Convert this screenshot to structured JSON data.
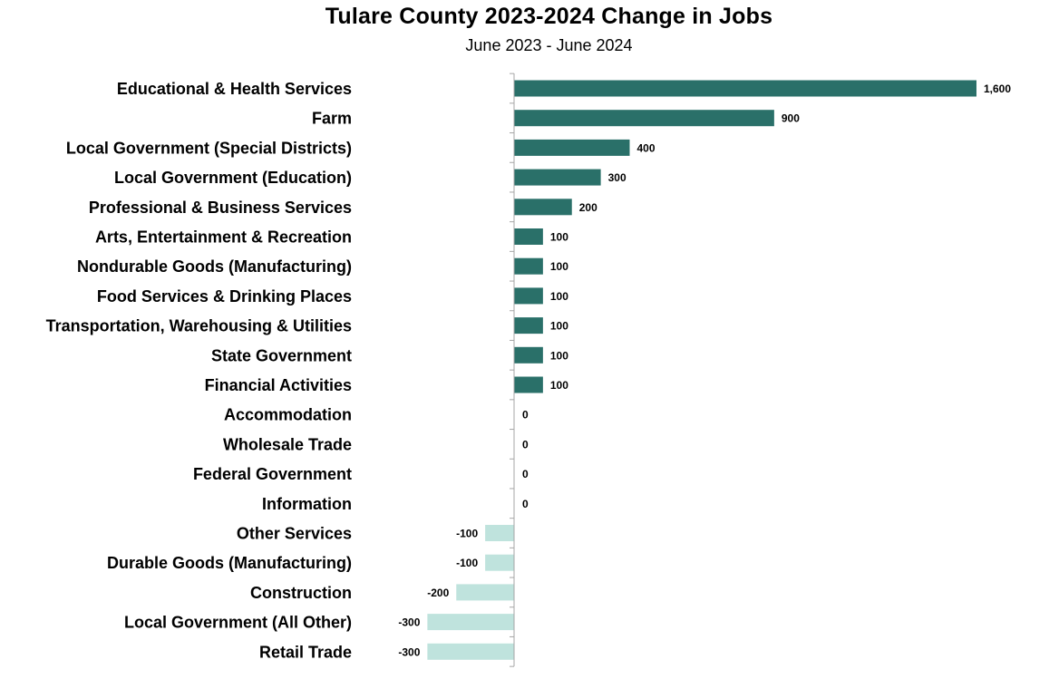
{
  "chart_data": {
    "type": "bar",
    "orientation": "horizontal",
    "title": "Tulare County 2023-2024 Change in Jobs",
    "subtitle": "June 2023 - June 2024",
    "xlabel": "",
    "ylabel": "",
    "grid": false,
    "legend": "none",
    "categories": [
      "Educational & Health Services",
      "Farm",
      "Local Government (Special Districts)",
      "Local Government (Education)",
      "Professional & Business Services",
      "Arts, Entertainment & Recreation",
      "Nondurable Goods (Manufacturing)",
      "Food Services & Drinking Places",
      "Transportation, Warehousing & Utilities",
      "State Government",
      "Financial Activities",
      "Accommodation",
      "Wholesale Trade",
      "Federal Government",
      "Information",
      "Other Services",
      "Durable Goods (Manufacturing)",
      "Construction",
      "Local Government (All Other)",
      "Retail Trade"
    ],
    "values": [
      1600,
      900,
      400,
      300,
      200,
      100,
      100,
      100,
      100,
      100,
      100,
      0,
      0,
      0,
      0,
      -100,
      -100,
      -200,
      -300,
      -300
    ],
    "value_labels": [
      "1,600",
      "900",
      "400",
      "300",
      "200",
      "100",
      "100",
      "100",
      "100",
      "100",
      "100",
      "0",
      "0",
      "0",
      "0",
      "-100",
      "-100",
      "-200",
      "-300",
      "-300"
    ],
    "xlim": [
      -300,
      1600
    ],
    "colors": {
      "positive": "#2a7069",
      "negative": "#bfe3dd",
      "axis": "#a6a6a6"
    }
  }
}
